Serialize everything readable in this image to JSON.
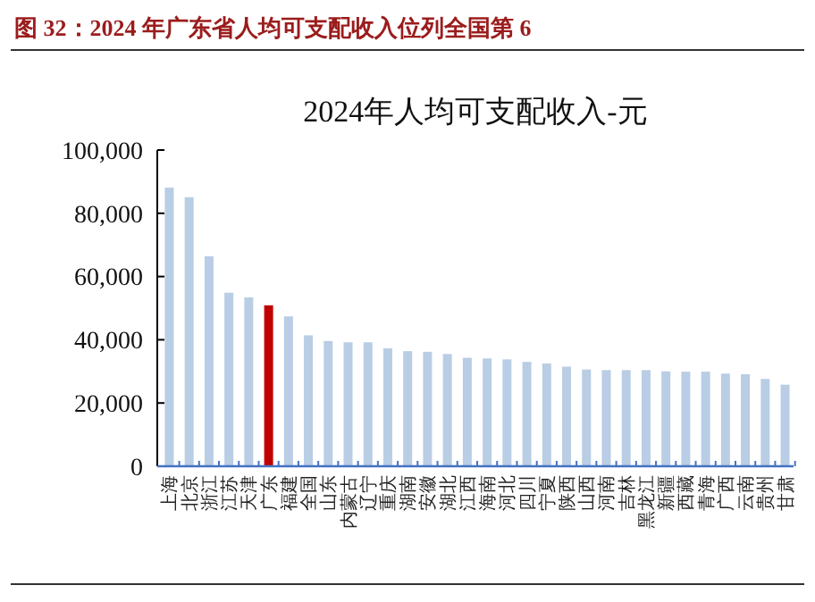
{
  "chart_data": {
    "type": "bar",
    "title": "图 32：2024 年广东省人均可支配收入位列全国第 6",
    "subtitle": "2024年人均可支配收入-元",
    "categories": [
      "上海",
      "北京",
      "浙江",
      "江苏",
      "天津",
      "广东",
      "福建",
      "全国",
      "山东",
      "内蒙古",
      "辽宁",
      "重庆",
      "湖南",
      "安徽",
      "湖北",
      "江西",
      "海南",
      "河北",
      "四川",
      "宁夏",
      "陕西",
      "山西",
      "河南",
      "吉林",
      "黑龙江",
      "新疆",
      "西藏",
      "青海",
      "广西",
      "云南",
      "贵州",
      "甘肃"
    ],
    "values": [
      88100,
      85100,
      66400,
      54900,
      53400,
      50900,
      47400,
      41400,
      39600,
      39200,
      39200,
      37300,
      36400,
      36200,
      35500,
      34300,
      34100,
      33800,
      33000,
      32500,
      31500,
      30600,
      30400,
      30400,
      30400,
      30000,
      29900,
      29900,
      29300,
      29100,
      27600,
      25800
    ],
    "colors": [
      "#b9cde5",
      "#b9cde5",
      "#b9cde5",
      "#b9cde5",
      "#b9cde5",
      "#c00000",
      "#b9cde5",
      "#b9cde5",
      "#b9cde5",
      "#b9cde5",
      "#b9cde5",
      "#b9cde5",
      "#b9cde5",
      "#b9cde5",
      "#b9cde5",
      "#b9cde5",
      "#b9cde5",
      "#b9cde5",
      "#b9cde5",
      "#b9cde5",
      "#b9cde5",
      "#b9cde5",
      "#b9cde5",
      "#b9cde5",
      "#b9cde5",
      "#b9cde5",
      "#b9cde5",
      "#b9cde5",
      "#b9cde5",
      "#b9cde5",
      "#b9cde5",
      "#b9cde5"
    ],
    "ylim": [
      0,
      100000
    ],
    "yticks": [
      {
        "value": 0,
        "label": "0"
      },
      {
        "value": 20000,
        "label": "20,000"
      },
      {
        "value": 40000,
        "label": "40,000"
      },
      {
        "value": 60000,
        "label": "60,000"
      },
      {
        "value": 80000,
        "label": "80,000"
      },
      {
        "value": 100000,
        "label": "100,000"
      }
    ],
    "grid": false
  }
}
